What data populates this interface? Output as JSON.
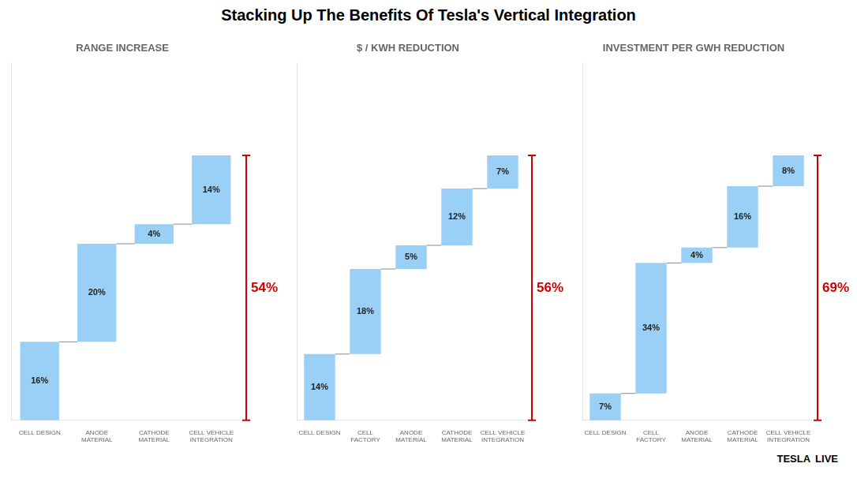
{
  "title": "Stacking Up The Benefits Of Tesla's Vertical Integration",
  "annotations": [
    "TESLA",
    "LIVE"
  ],
  "chart_data": [
    {
      "type": "waterfall",
      "title": "RANGE INCREASE",
      "categories": [
        "CELL DESIGN",
        "ANODE\nMATERIAL",
        "CATHODE\nMATERIAL",
        "CELL VEHICLE\nINTEGRATION"
      ],
      "values": [
        16,
        20,
        4,
        14
      ],
      "value_labels": [
        "16%",
        "20%",
        "4%",
        "14%"
      ],
      "data_labels": true,
      "total": {
        "value": 54,
        "label": "54%",
        "color": "#cc0000"
      },
      "ylim": [
        0,
        72.9
      ],
      "tick_labels": "x",
      "grid": false
    },
    {
      "type": "waterfall",
      "title": "$ / KWH REDUCTION",
      "categories": [
        "CELL DESIGN",
        "CELL\nFACTORY",
        "ANODE\nMATERIAL",
        "CATHODE\nMATERIAL",
        "CELL VEHICLE\nINTEGRATION"
      ],
      "values": [
        14,
        18,
        5,
        12,
        7
      ],
      "value_labels": [
        "14%",
        "18%",
        "5%",
        "12%",
        "7%"
      ],
      "data_labels": true,
      "total": {
        "value": 56,
        "label": "56%",
        "color": "#cc0000"
      },
      "ylim": [
        0,
        75.6
      ],
      "tick_labels": "x",
      "grid": false
    },
    {
      "type": "waterfall",
      "title": "INVESTMENT PER GWH REDUCTION",
      "categories": [
        "CELL DESIGN",
        "CELL\nFACTORY",
        "ANODE\nMATERIAL",
        "CATHODE\nMATERIAL",
        "CELL VEHICLE\nINTEGRATION"
      ],
      "values": [
        7,
        34,
        4,
        16,
        8
      ],
      "value_labels": [
        "7%",
        "34%",
        "4%",
        "16%",
        "8%"
      ],
      "data_labels": true,
      "total": {
        "value": 69,
        "label": "69%",
        "color": "#cc0000"
      },
      "ylim": [
        0,
        93.15
      ],
      "tick_labels": "x",
      "grid": false
    }
  ]
}
